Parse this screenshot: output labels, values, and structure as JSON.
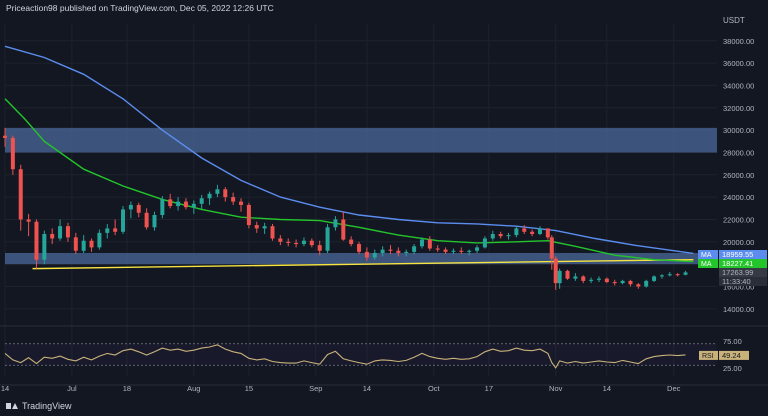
{
  "header": {
    "text": "Priceaction98 published on TradingView.com, Dec 05, 2022 12:26 UTC"
  },
  "footer": {
    "brand": "TradingView"
  },
  "currency": "USDT",
  "colors": {
    "bg": "#131722",
    "grid": "#1e222d",
    "up": "#26a69a",
    "down": "#ef5350",
    "ma_blue": "#5b8def",
    "ma_green": "#23c52b",
    "trendline": "#f5e342",
    "zone": "#4b6a99",
    "rsi": "#c9b27a",
    "text": "#b2b5be"
  },
  "chart_data": [
    {
      "type": "candlestick",
      "title": "",
      "y_axis_ticks": [
        38000,
        36000,
        34000,
        32000,
        30000,
        28000,
        26000,
        24000,
        22000,
        20000,
        18000,
        16000,
        14000
      ],
      "ylim": [
        13000,
        39500
      ],
      "x_axis_ticks": [
        "14",
        "Jul",
        "18",
        "Aug",
        "15",
        "Sep",
        "14",
        "Oct",
        "17",
        "Nov",
        "14",
        "Dec"
      ],
      "xlim_days": [
        0,
        181
      ],
      "x_tick_days": [
        0,
        17,
        31,
        48,
        62,
        79,
        92,
        109,
        123,
        140,
        153,
        170
      ],
      "ohlc": [
        [
          0,
          29500,
          30200,
          28500,
          29300
        ],
        [
          2,
          29300,
          29500,
          26000,
          26500
        ],
        [
          4,
          26500,
          26900,
          21000,
          22000
        ],
        [
          6,
          22000,
          22500,
          20500,
          21800
        ],
        [
          8,
          21800,
          22000,
          17600,
          18400
        ],
        [
          10,
          18400,
          21000,
          18000,
          20700
        ],
        [
          12,
          20700,
          21200,
          19800,
          20300
        ],
        [
          14,
          20300,
          22000,
          20100,
          21400
        ],
        [
          16,
          21400,
          21700,
          20000,
          20400
        ],
        [
          18,
          20400,
          20800,
          18900,
          19200
        ],
        [
          20,
          19200,
          20600,
          19000,
          20100
        ],
        [
          22,
          20100,
          20300,
          19100,
          19500
        ],
        [
          24,
          19500,
          21100,
          19300,
          20800
        ],
        [
          26,
          20800,
          21600,
          20300,
          21200
        ],
        [
          28,
          21200,
          22000,
          20600,
          20900
        ],
        [
          30,
          20900,
          23200,
          20700,
          22900
        ],
        [
          32,
          22900,
          23600,
          22100,
          23300
        ],
        [
          34,
          23300,
          23500,
          22200,
          22600
        ],
        [
          36,
          22600,
          23000,
          21100,
          21300
        ],
        [
          38,
          21300,
          22700,
          21000,
          22400
        ],
        [
          40,
          22400,
          24100,
          22100,
          23800
        ],
        [
          42,
          23800,
          24300,
          23000,
          23200
        ],
        [
          44,
          23200,
          24000,
          22800,
          23600
        ],
        [
          46,
          23600,
          23900,
          22900,
          23100
        ],
        [
          48,
          23100,
          23700,
          22500,
          23400
        ],
        [
          50,
          23400,
          24200,
          22900,
          23900
        ],
        [
          52,
          23900,
          24500,
          23300,
          24300
        ],
        [
          54,
          24300,
          25100,
          24000,
          24700
        ],
        [
          56,
          24700,
          24900,
          23600,
          24000
        ],
        [
          58,
          24000,
          24400,
          23300,
          23600
        ],
        [
          60,
          23600,
          23900,
          22700,
          23300
        ],
        [
          62,
          23300,
          23500,
          21200,
          21500
        ],
        [
          64,
          21500,
          21800,
          20800,
          21200
        ],
        [
          66,
          21200,
          21700,
          20700,
          21400
        ],
        [
          68,
          21400,
          21600,
          20100,
          20300
        ],
        [
          70,
          20300,
          20600,
          19700,
          20000
        ],
        [
          72,
          20000,
          20300,
          19600,
          19900
        ],
        [
          74,
          19900,
          20200,
          19500,
          19800
        ],
        [
          76,
          19800,
          20400,
          19600,
          20100
        ],
        [
          78,
          20100,
          20300,
          19500,
          19700
        ],
        [
          80,
          19700,
          20100,
          18800,
          19200
        ],
        [
          82,
          19200,
          21600,
          19000,
          21300
        ],
        [
          84,
          21300,
          22300,
          21000,
          22000
        ],
        [
          86,
          22000,
          22700,
          20100,
          20200
        ],
        [
          88,
          20200,
          20500,
          19600,
          19800
        ],
        [
          90,
          19800,
          20000,
          18900,
          19100
        ],
        [
          92,
          19100,
          19500,
          18300,
          18600
        ],
        [
          94,
          18600,
          19300,
          18400,
          19000
        ],
        [
          96,
          19000,
          19600,
          18700,
          19300
        ],
        [
          98,
          19300,
          19700,
          18900,
          19200
        ],
        [
          100,
          19200,
          19500,
          18700,
          19000
        ],
        [
          102,
          19000,
          19300,
          18700,
          19100
        ],
        [
          104,
          19100,
          19800,
          18900,
          19600
        ],
        [
          106,
          19600,
          20400,
          19400,
          20200
        ],
        [
          108,
          20200,
          20500,
          19200,
          19400
        ],
        [
          110,
          19400,
          19700,
          19100,
          19300
        ],
        [
          112,
          19300,
          19500,
          18900,
          19100
        ],
        [
          114,
          19100,
          19400,
          18900,
          19200
        ],
        [
          116,
          19200,
          19500,
          18900,
          19100
        ],
        [
          118,
          19100,
          19300,
          18800,
          19200
        ],
        [
          120,
          19200,
          19700,
          19000,
          19500
        ],
        [
          122,
          19500,
          20500,
          19400,
          20300
        ],
        [
          124,
          20300,
          21000,
          20100,
          20700
        ],
        [
          126,
          20700,
          20900,
          20300,
          20500
        ],
        [
          128,
          20500,
          20800,
          20200,
          20600
        ],
        [
          130,
          20600,
          21400,
          20400,
          21200
        ],
        [
          132,
          21200,
          21500,
          20700,
          20900
        ],
        [
          134,
          20900,
          21100,
          20500,
          20700
        ],
        [
          136,
          20700,
          21400,
          20600,
          21200
        ],
        [
          138,
          21200,
          21200,
          20200,
          20400
        ],
        [
          139,
          20400,
          20600,
          17500,
          18500
        ],
        [
          140,
          18500,
          18700,
          15700,
          16300
        ],
        [
          141,
          16300,
          17600,
          15800,
          17400
        ],
        [
          143,
          17400,
          17500,
          16600,
          16700
        ],
        [
          145,
          16700,
          17200,
          16500,
          16900
        ],
        [
          147,
          16900,
          17000,
          16300,
          16500
        ],
        [
          149,
          16500,
          16800,
          16300,
          16600
        ],
        [
          151,
          16600,
          16900,
          16400,
          16700
        ],
        [
          153,
          16700,
          16800,
          16300,
          16400
        ],
        [
          155,
          16400,
          16600,
          16100,
          16300
        ],
        [
          157,
          16300,
          16600,
          16200,
          16500
        ],
        [
          159,
          16500,
          16600,
          16000,
          16200
        ],
        [
          161,
          16200,
          16300,
          15800,
          16000
        ],
        [
          163,
          16000,
          16600,
          15900,
          16500
        ],
        [
          165,
          16500,
          17000,
          16400,
          16900
        ],
        [
          167,
          16900,
          17100,
          16700,
          17000
        ],
        [
          169,
          17000,
          17300,
          16900,
          17100
        ],
        [
          171,
          17100,
          17200,
          16900,
          17050
        ],
        [
          173,
          17050,
          17400,
          17000,
          17260
        ]
      ],
      "ma_blue": [
        [
          0,
          37500
        ],
        [
          10,
          36500
        ],
        [
          20,
          35000
        ],
        [
          30,
          32800
        ],
        [
          40,
          30000
        ],
        [
          50,
          27500
        ],
        [
          60,
          25500
        ],
        [
          70,
          24000
        ],
        [
          80,
          23100
        ],
        [
          90,
          22400
        ],
        [
          100,
          22000
        ],
        [
          110,
          21700
        ],
        [
          120,
          21600
        ],
        [
          130,
          21400
        ],
        [
          140,
          21000
        ],
        [
          150,
          20300
        ],
        [
          160,
          19700
        ],
        [
          170,
          19200
        ],
        [
          175,
          18960
        ]
      ],
      "ma_green": [
        [
          0,
          32800
        ],
        [
          5,
          31000
        ],
        [
          10,
          29000
        ],
        [
          20,
          26500
        ],
        [
          30,
          25000
        ],
        [
          40,
          23800
        ],
        [
          50,
          22900
        ],
        [
          60,
          22200
        ],
        [
          70,
          22000
        ],
        [
          80,
          21900
        ],
        [
          90,
          21300
        ],
        [
          100,
          20600
        ],
        [
          110,
          20100
        ],
        [
          120,
          19900
        ],
        [
          130,
          20000
        ],
        [
          138,
          20100
        ],
        [
          145,
          19600
        ],
        [
          155,
          18800
        ],
        [
          165,
          18400
        ],
        [
          175,
          18227
        ]
      ],
      "trendline": [
        [
          7,
          17600
        ],
        [
          175,
          18400
        ]
      ],
      "zones": [
        {
          "y_from": 28000,
          "y_to": 30200
        },
        {
          "y_from": 18000,
          "y_to": 19000
        }
      ],
      "labels": [
        {
          "name": "MA",
          "value": "18959.55",
          "color": "#5b8def"
        },
        {
          "name": "MA",
          "value": "18227.41",
          "color": "#23c52b"
        },
        {
          "name": "",
          "value": "17263.99",
          "color": "#b2b5be"
        },
        {
          "name": "",
          "value": "11:33:40",
          "color": "#b2b5be"
        }
      ]
    },
    {
      "type": "line",
      "title": "RSI",
      "y_axis_ticks": [
        75,
        50,
        25
      ],
      "ylim": [
        10,
        90
      ],
      "bands": [
        30,
        70
      ],
      "last_value_label": "RSI",
      "last_value": "49.24",
      "x": [
        0,
        2,
        4,
        6,
        8,
        10,
        12,
        14,
        16,
        18,
        20,
        22,
        24,
        26,
        28,
        30,
        32,
        34,
        36,
        38,
        40,
        42,
        44,
        46,
        48,
        50,
        52,
        54,
        56,
        58,
        60,
        62,
        64,
        66,
        68,
        70,
        72,
        74,
        76,
        78,
        80,
        82,
        84,
        86,
        88,
        90,
        92,
        94,
        96,
        98,
        100,
        102,
        104,
        106,
        108,
        110,
        112,
        114,
        116,
        118,
        120,
        122,
        124,
        126,
        128,
        130,
        132,
        134,
        136,
        138,
        139,
        140,
        141,
        143,
        145,
        147,
        149,
        151,
        153,
        155,
        157,
        159,
        161,
        163,
        165,
        167,
        169,
        171,
        173
      ],
      "values": [
        52,
        40,
        35,
        44,
        33,
        45,
        43,
        47,
        41,
        38,
        45,
        40,
        47,
        52,
        49,
        57,
        60,
        55,
        49,
        55,
        62,
        58,
        60,
        56,
        58,
        62,
        64,
        68,
        60,
        55,
        52,
        43,
        40,
        42,
        37,
        35,
        34,
        34,
        38,
        35,
        32,
        50,
        56,
        42,
        38,
        35,
        32,
        38,
        40,
        39,
        37,
        39,
        45,
        52,
        46,
        43,
        41,
        43,
        41,
        42,
        46,
        55,
        60,
        56,
        57,
        62,
        58,
        57,
        60,
        52,
        35,
        25,
        38,
        34,
        37,
        34,
        36,
        38,
        36,
        35,
        39,
        36,
        33,
        42,
        46,
        48,
        49,
        48,
        49.24
      ]
    }
  ]
}
